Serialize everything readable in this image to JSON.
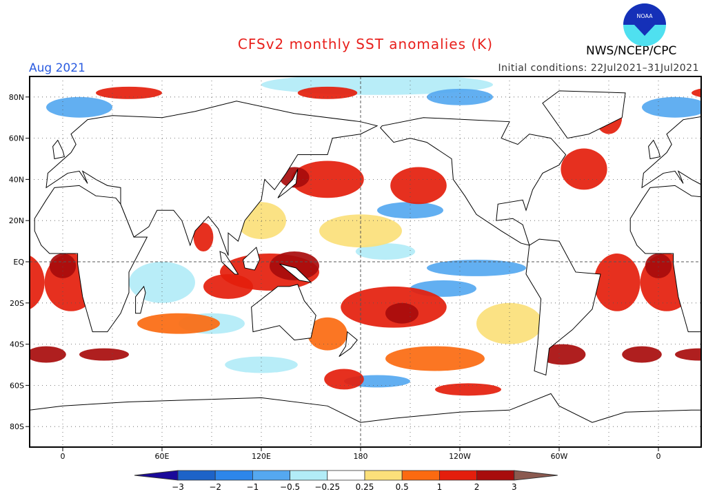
{
  "header": {
    "title": "CFSv2 monthly SST anomalies (K)",
    "month": "Aug 2021",
    "initial_conditions": "Initial conditions: 22Jul2021–31Jul2021",
    "agency": "NWS/NCEP/CPC",
    "logo_text": "NOAA"
  },
  "chart_data": {
    "type": "heatmap",
    "title": "CFSv2 monthly SST anomalies (K)",
    "map": "global equirectangular, centered on 180",
    "lon_range": [
      -20,
      386
    ],
    "lat_range": [
      -90,
      90
    ],
    "y_ticks": [
      "80N",
      "60N",
      "40N",
      "20N",
      "EQ",
      "20S",
      "40S",
      "60S",
      "80S"
    ],
    "y_tick_values": [
      80,
      60,
      40,
      20,
      0,
      -20,
      -40,
      -60,
      -80
    ],
    "x_ticks": [
      "0",
      "60E",
      "120E",
      "180",
      "120W",
      "60W",
      "0"
    ],
    "x_tick_values": [
      0,
      60,
      120,
      180,
      240,
      300,
      360
    ],
    "grid": true,
    "colorbar": {
      "levels": [
        -3,
        -2,
        -1,
        -0.5,
        -0.25,
        0.25,
        0.5,
        1,
        2,
        3
      ],
      "labels": [
        "-3",
        "-2",
        "-1",
        "-0.5",
        "-0.25",
        "0.25",
        "0.5",
        "1",
        "2",
        "3"
      ],
      "colors": [
        "#1a0a9a",
        "#1d63c8",
        "#2d86ea",
        "#55a8f0",
        "#b2ecf7",
        "#ffffff",
        "#fbe07a",
        "#fb6a10",
        "#e41e0c",
        "#a80c0c",
        "#8b5a50"
      ]
    },
    "anomaly_regions": [
      {
        "lon": 5,
        "lat": -10,
        "rx": 16,
        "ry": 14,
        "value": 1.5
      },
      {
        "lon": 0,
        "lat": -2,
        "rx": 8,
        "ry": 6,
        "value": 2.2
      },
      {
        "lon": 125,
        "lat": -5,
        "rx": 30,
        "ry": 9,
        "value": 1.5
      },
      {
        "lon": 140,
        "lat": -2,
        "rx": 15,
        "ry": 7,
        "value": 2.2
      },
      {
        "lon": 100,
        "lat": -12,
        "rx": 15,
        "ry": 6,
        "value": 1.2
      },
      {
        "lon": 85,
        "lat": 12,
        "rx": 6,
        "ry": 7,
        "value": 1
      },
      {
        "lon": 160,
        "lat": 40,
        "rx": 22,
        "ry": 9,
        "value": 1.2
      },
      {
        "lon": 140,
        "lat": 41,
        "rx": 9,
        "ry": 5,
        "value": 2.5
      },
      {
        "lon": 215,
        "lat": 37,
        "rx": 17,
        "ry": 9,
        "value": 1.3
      },
      {
        "lon": 200,
        "lat": -22,
        "rx": 32,
        "ry": 10,
        "value": 1.2
      },
      {
        "lon": 205,
        "lat": -25,
        "rx": 10,
        "ry": 5,
        "value": 2.2
      },
      {
        "lon": 225,
        "lat": -47,
        "rx": 30,
        "ry": 6,
        "value": 0.8
      },
      {
        "lon": 315,
        "lat": 45,
        "rx": 14,
        "ry": 10,
        "value": 1.2
      },
      {
        "lon": 335,
        "lat": -10,
        "rx": 14,
        "ry": 14,
        "value": 1.5
      },
      {
        "lon": 25,
        "lat": -45,
        "rx": 15,
        "ry": 3,
        "value": 2.2
      },
      {
        "lon": 70,
        "lat": -30,
        "rx": 25,
        "ry": 5,
        "value": 0.7
      },
      {
        "lon": 302,
        "lat": -45,
        "rx": 14,
        "ry": 5,
        "value": 2.2
      },
      {
        "lon": 350,
        "lat": -45,
        "rx": 12,
        "ry": 4,
        "value": 2.2
      },
      {
        "lon": 170,
        "lat": -57,
        "rx": 12,
        "ry": 5,
        "value": 1.5
      },
      {
        "lon": 245,
        "lat": -62,
        "rx": 20,
        "ry": 3,
        "value": 1.2
      },
      {
        "lon": 160,
        "lat": -35,
        "rx": 12,
        "ry": 8,
        "value": 0.8
      },
      {
        "lon": 40,
        "lat": 82,
        "rx": 20,
        "ry": 3,
        "value": 1.2
      },
      {
        "lon": 160,
        "lat": 82,
        "rx": 18,
        "ry": 3,
        "value": 1.3
      },
      {
        "lon": 330,
        "lat": 70,
        "rx": 8,
        "ry": 8,
        "value": 1.2
      },
      {
        "lon": 190,
        "lat": 86,
        "rx": 70,
        "ry": 5,
        "value": -0.4
      },
      {
        "lon": 240,
        "lat": 80,
        "rx": 20,
        "ry": 4,
        "value": -1
      },
      {
        "lon": 250,
        "lat": -3,
        "rx": 30,
        "ry": 4,
        "value": -0.7
      },
      {
        "lon": 210,
        "lat": 25,
        "rx": 20,
        "ry": 4,
        "value": -0.8
      },
      {
        "lon": 230,
        "lat": -13,
        "rx": 20,
        "ry": 4,
        "value": -1
      },
      {
        "lon": 195,
        "lat": 5,
        "rx": 18,
        "ry": 4,
        "value": -0.4
      },
      {
        "lon": 60,
        "lat": -10,
        "rx": 20,
        "ry": 10,
        "value": -0.4
      },
      {
        "lon": 90,
        "lat": -30,
        "rx": 20,
        "ry": 5,
        "value": -0.4
      },
      {
        "lon": 190,
        "lat": -58,
        "rx": 20,
        "ry": 3,
        "value": -1
      },
      {
        "lon": 120,
        "lat": -50,
        "rx": 22,
        "ry": 4,
        "value": -0.5
      },
      {
        "lon": 10,
        "lat": 75,
        "rx": 20,
        "ry": 5,
        "value": -0.7
      },
      {
        "lon": 180,
        "lat": 15,
        "rx": 25,
        "ry": 8,
        "value": 0.4
      },
      {
        "lon": 120,
        "lat": 20,
        "rx": 15,
        "ry": 9,
        "value": 0.4
      },
      {
        "lon": 270,
        "lat": -30,
        "rx": 20,
        "ry": 10,
        "value": 0.3
      }
    ]
  }
}
